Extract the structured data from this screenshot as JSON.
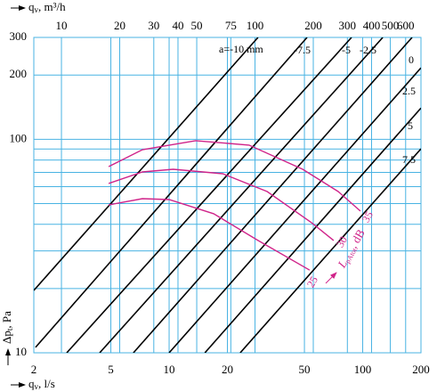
{
  "chart_data": {
    "type": "line",
    "log_x": true,
    "log_y": true,
    "grid": true,
    "x_label": {
      "symbol": "q",
      "subscript": "v",
      "unit": ", l/s"
    },
    "x2_label": {
      "symbol": "q",
      "subscript": "v",
      "unit": ", m³/h"
    },
    "y_label": {
      "symbol": "Δp",
      "subscript": "t",
      "unit": ", Pa"
    },
    "xlim": [
      2,
      200
    ],
    "xticks": [
      2,
      5,
      10,
      20,
      50,
      100,
      200
    ],
    "x2lim": [
      7.2,
      720
    ],
    "x2ticks": [
      10,
      20,
      30,
      40,
      50,
      75,
      100,
      200,
      300,
      400,
      500,
      600
    ],
    "ylim": [
      10,
      300
    ],
    "yticks": [
      10,
      100,
      200,
      300
    ],
    "y_minor_ticks": [
      20,
      30,
      40,
      50,
      60,
      70,
      80,
      90
    ],
    "series": [
      {
        "name": "a=-10 mm",
        "color": "#000000",
        "x": [
          2,
          28.8
        ],
        "values": [
          19.6,
          300
        ]
      },
      {
        "name": "-7.5",
        "color": "#000000",
        "x": [
          2.04,
          51.6
        ],
        "values": [
          10.6,
          300
        ]
      },
      {
        "name": "-5",
        "color": "#000000",
        "x": [
          2.96,
          87.6
        ],
        "values": [
          10,
          300
        ]
      },
      {
        "name": "-2.5",
        "color": "#000000",
        "x": [
          4.38,
          127
        ],
        "values": [
          10,
          300
        ]
      },
      {
        "name": "0",
        "color": "#000000",
        "x": [
          6.54,
          180
        ],
        "values": [
          10,
          300
        ]
      },
      {
        "name": "2.5",
        "color": "#000000",
        "x": [
          10,
          200
        ],
        "values": [
          10,
          216
        ]
      },
      {
        "name": "5",
        "color": "#000000",
        "x": [
          15.3,
          200
        ],
        "values": [
          10,
          140
        ]
      },
      {
        "name": "7.5",
        "color": "#000000",
        "x": [
          23.3,
          200
        ],
        "values": [
          10,
          90.3
        ]
      }
    ],
    "curves": [
      {
        "name": "35",
        "color": "#d0248a",
        "x": [
          4.87,
          7.28,
          13.7,
          25.9,
          49.0,
          74.7,
          97.3
        ],
        "values": [
          74.5,
          89.4,
          98.5,
          93.9,
          72.4,
          56.9,
          46.1
        ]
      },
      {
        "name": "30",
        "color": "#d0248a",
        "x": [
          4.87,
          7.28,
          10.5,
          18.9,
          32.1,
          54.4,
          70.8
        ],
        "values": [
          62.1,
          70.3,
          72.4,
          69.0,
          56.9,
          40.7,
          33.6
        ]
      },
      {
        "name": "25",
        "color": "#d0248a",
        "x": [
          4.87,
          7.28,
          10.0,
          17.0,
          28.8,
          53.2
        ],
        "values": [
          49.3,
          52.7,
          52.2,
          44.8,
          33.6,
          24.4
        ]
      }
    ],
    "curve_label": {
      "symbol": "L",
      "subscript": "pAtot",
      "unit": ", dB"
    }
  }
}
